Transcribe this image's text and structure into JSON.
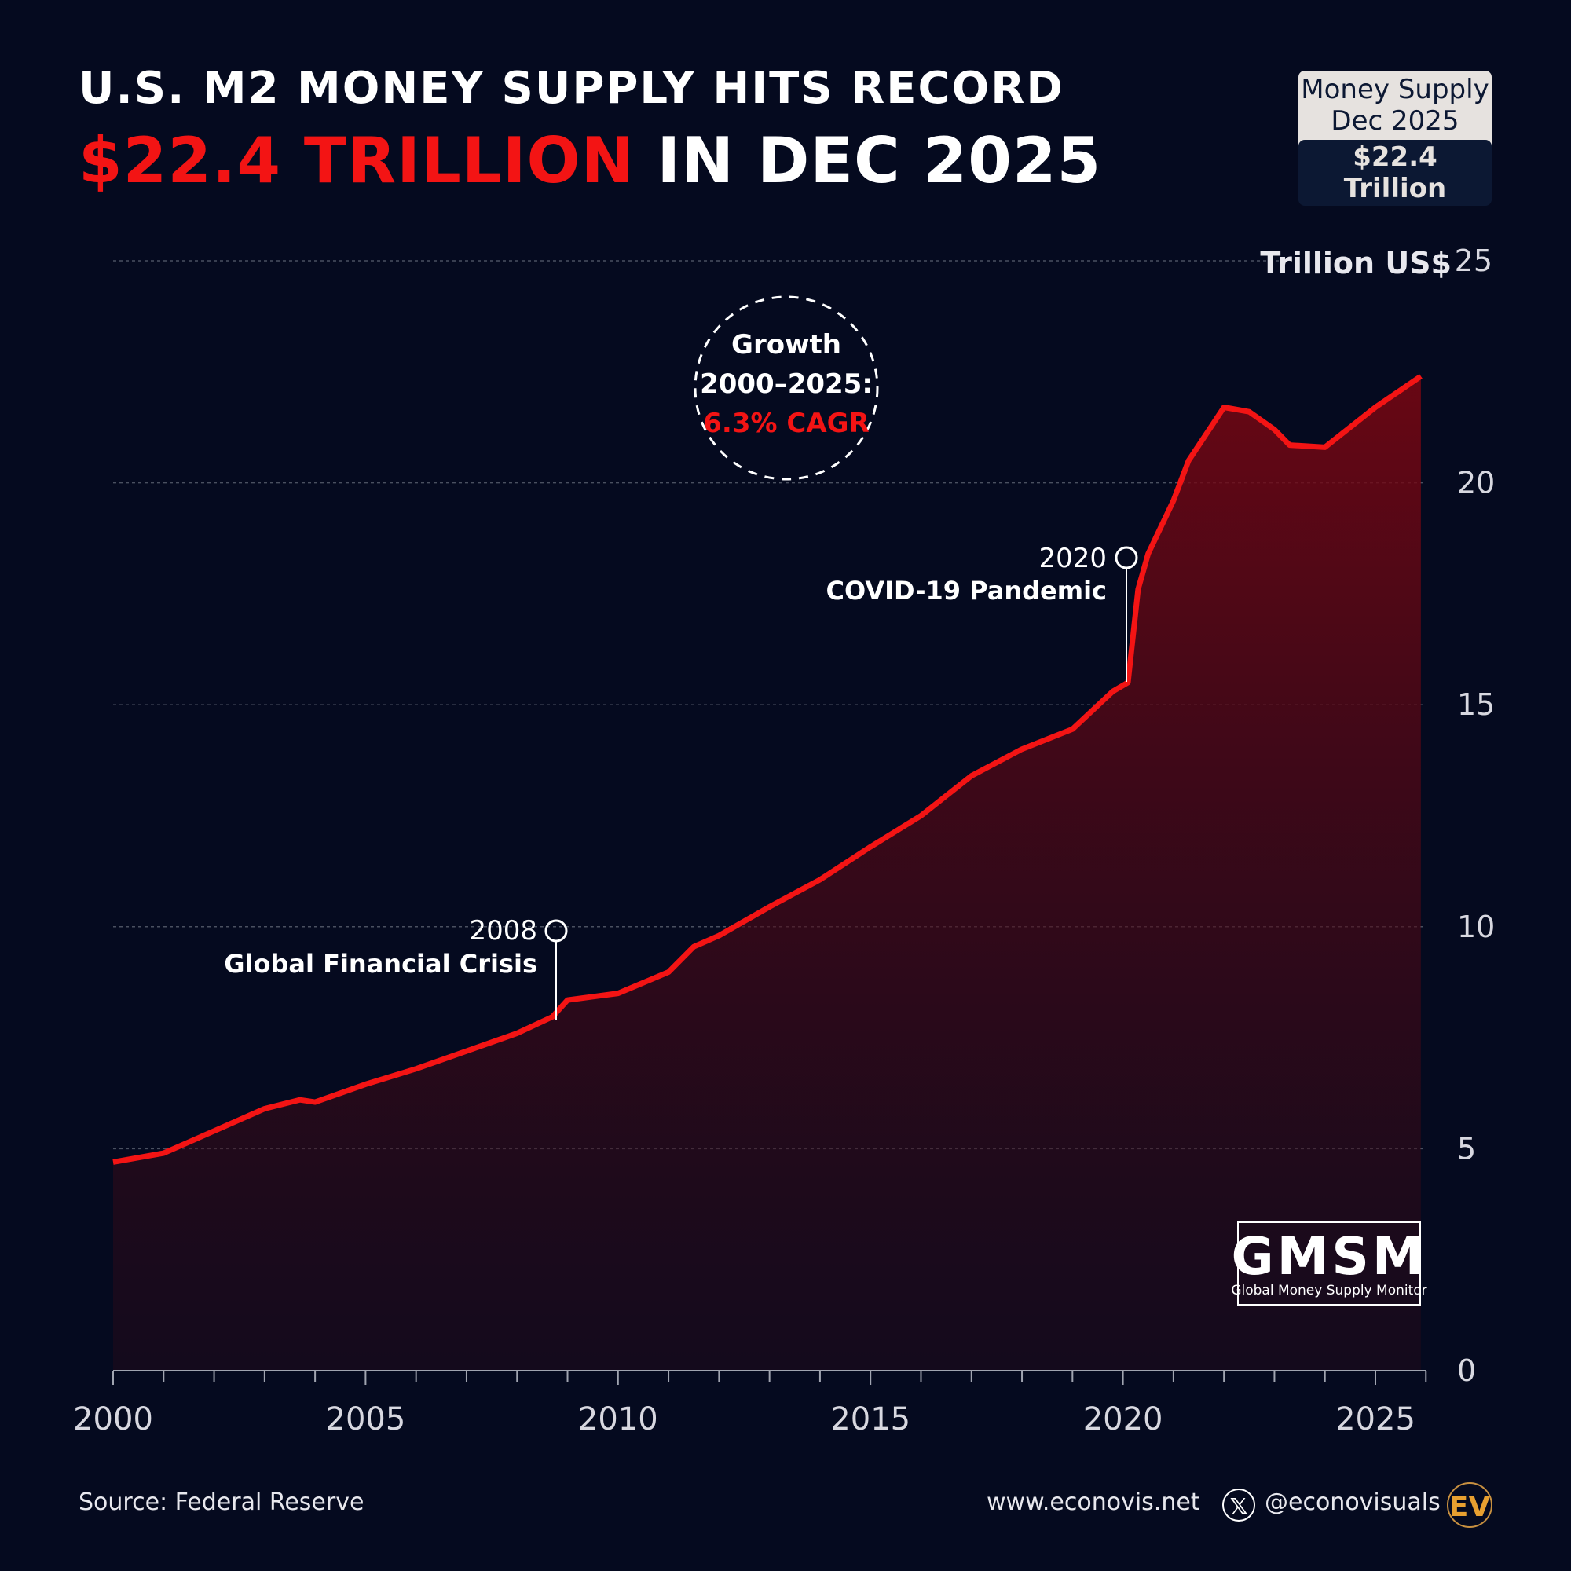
{
  "title": {
    "line1": "U.S. M2 MONEY SUPPLY HITS RECORD",
    "highlight": "$22.4 TRILLION",
    "rest": " IN DEC 2025"
  },
  "badge": {
    "line1": "Money Supply",
    "line2": "Dec 2025",
    "value": "$22.4 Trillion"
  },
  "growth": {
    "line1": "Growth",
    "line2": "2000–2025:",
    "cagr": "6.3% CAGR"
  },
  "annotations": [
    {
      "year": "2008",
      "label": "Global Financial Crisis"
    },
    {
      "year": "2020",
      "label": "COVID-19 Pandemic"
    }
  ],
  "logo": {
    "abbr": "GMSM",
    "name": "Global Money Supply Monitor"
  },
  "footer": {
    "source": "Source: Federal Reserve",
    "website": "www.econovis.net",
    "handle": "@econovisuals",
    "brand": "EV"
  },
  "colors": {
    "background": "#050a1f",
    "line": "#f31414",
    "accent": "#e8a030"
  },
  "chart_data": {
    "type": "area",
    "ylabel": "Trillion US$",
    "ylim": [
      0,
      25
    ],
    "xlim": [
      2000,
      2026
    ],
    "yticks": [
      "0",
      "5",
      "10",
      "15",
      "20",
      "25"
    ],
    "xticks": [
      "2000",
      "2005",
      "2010",
      "2015",
      "2020",
      "2025"
    ],
    "grid": true,
    "x": [
      2000,
      2001,
      2002,
      2003,
      2003.7,
      2004,
      2005,
      2006,
      2007,
      2008,
      2008.7,
      2009,
      2010,
      2011,
      2011.5,
      2012,
      2013,
      2014,
      2015,
      2016,
      2017,
      2018,
      2019,
      2019.8,
      2020.1,
      2020.3,
      2020.5,
      2021,
      2021.3,
      2022,
      2022.5,
      2023,
      2023.3,
      2024,
      2025,
      2025.9
    ],
    "values": [
      4.7,
      4.9,
      5.4,
      5.9,
      6.1,
      6.05,
      6.45,
      6.8,
      7.2,
      7.6,
      7.97,
      8.35,
      8.5,
      8.98,
      9.55,
      9.8,
      10.45,
      11.06,
      11.8,
      12.5,
      13.4,
      14.0,
      14.45,
      15.3,
      15.5,
      17.6,
      18.4,
      19.6,
      20.5,
      21.7,
      21.6,
      21.2,
      20.85,
      20.8,
      21.7,
      22.4
    ]
  }
}
